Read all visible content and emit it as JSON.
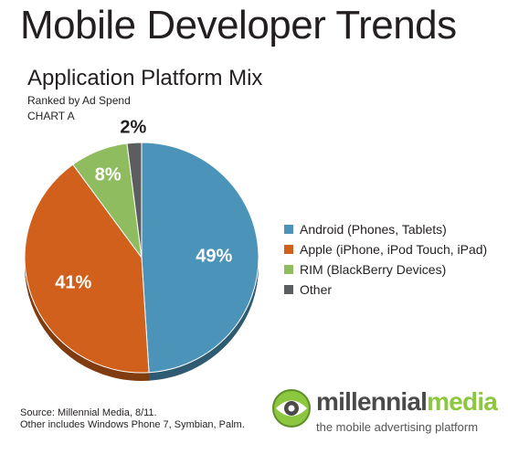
{
  "header": {
    "title": "Mobile Developer Trends",
    "subtitle": "Application Platform Mix",
    "ranked_by": "Ranked by Ad Spend",
    "chart_id": "CHART A"
  },
  "chart_data": {
    "type": "pie",
    "title": "Application Platform Mix",
    "categories": [
      "Android (Phones, Tablets)",
      "Apple (iPhone, iPod Touch, iPad)",
      "RIM (BlackBerry Devices)",
      "Other"
    ],
    "values": [
      49,
      41,
      8,
      2
    ],
    "labels": [
      "49%",
      "41%",
      "8%",
      "2%"
    ],
    "colors": [
      "#4b93b9",
      "#d0601c",
      "#8fbc5e",
      "#5c5d5f"
    ],
    "legend_position": "right"
  },
  "footer": {
    "source": "Source: Millennial Media, 8/11.",
    "note": "Other includes Windows Phone 7, Symbian, Palm."
  },
  "logo": {
    "word_part1": "millennial",
    "word_part2": "media",
    "tagline": "the mobile advertising platform",
    "mark": "eye-logo-icon"
  }
}
